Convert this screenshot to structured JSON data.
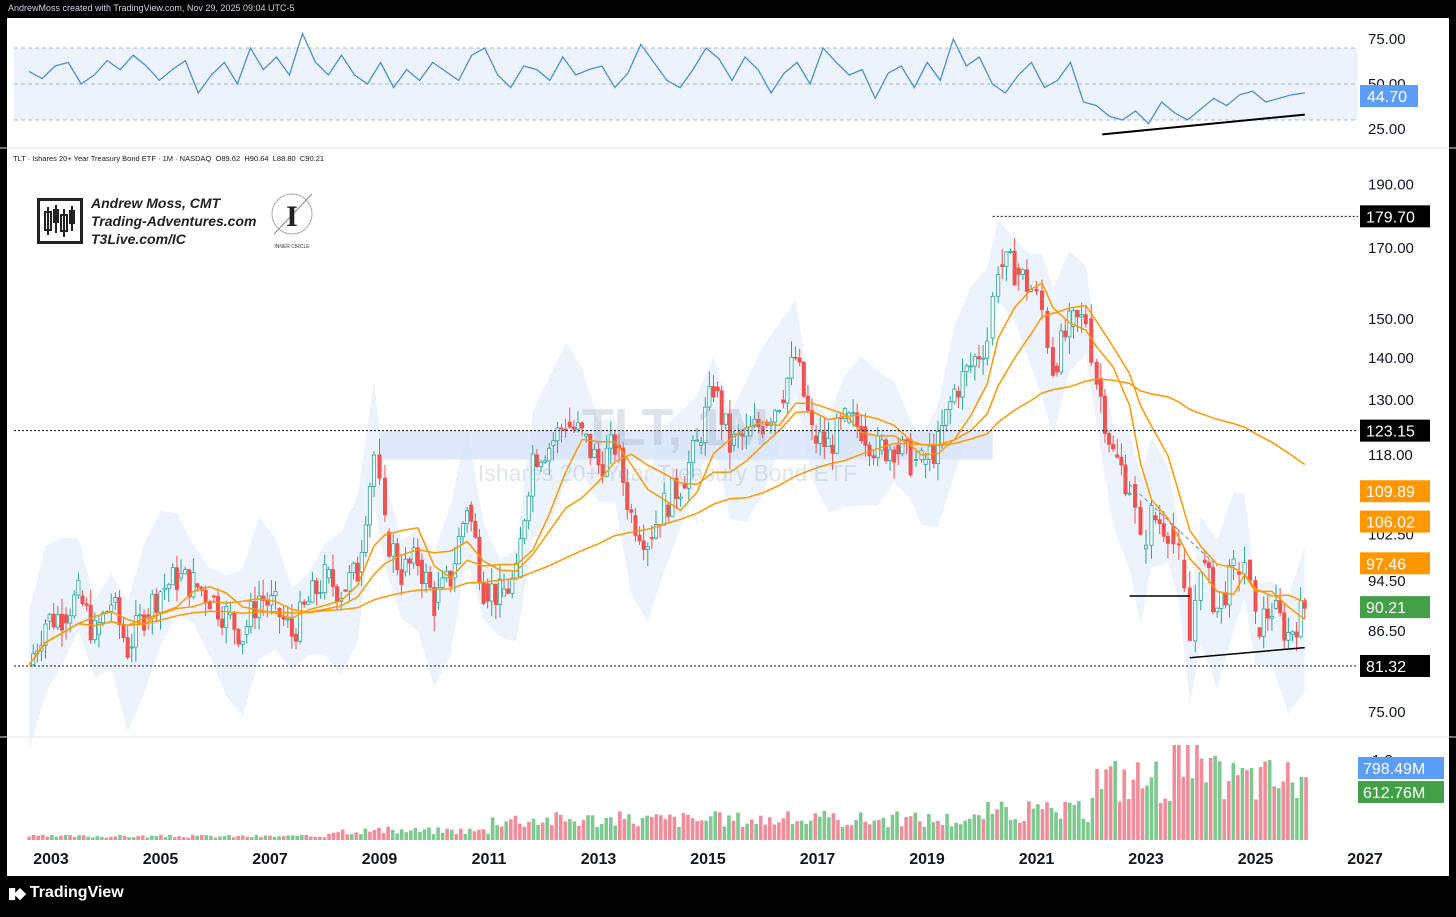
{
  "header": {
    "attribution": "AndrewMoss created with TradingView.com, Nov 29, 2025 09:04 UTC-5"
  },
  "footer": {
    "brand": "TradingView",
    "icon": "tradingview-logo-icon"
  },
  "legend": {
    "symbol_text": "TLT · Ishares 20+ Year Treasury Bond ETF · 1M · NASDAQ",
    "open_label": "O",
    "open": "89.62",
    "high_label": "H",
    "high": "90.64",
    "low_label": "L",
    "low": "88.80",
    "close_label": "C",
    "close": "90.21"
  },
  "signature": {
    "line1": "Andrew Moss, CMT",
    "line2": "Trading-Adventures.com",
    "line3": "T3Live.com/IC",
    "logo_letter": "I",
    "logo_caption": "INNER CIRCLE"
  },
  "watermark": {
    "title": "TLT, 1M",
    "subtitle": "Ishares 20+ Year Treasury Bond ETF"
  },
  "colors": {
    "up": "#26a69a",
    "down": "#ef5350",
    "sma": "#ff9800",
    "rsi": "#4a90d9",
    "volume_up": "#7dc98f",
    "volume_down": "#f28b9a",
    "band_fill": "#eaf1fb",
    "price_tag": "#43a047",
    "black_tag": "#000000",
    "orange_tag": "#ff9800",
    "blue_tag": "#5b9cf6"
  },
  "chart_data": [
    {
      "type": "line",
      "name": "rsi-panel",
      "yticks": [
        "75.00",
        "50.00",
        "25.00"
      ],
      "ylim": [
        20,
        80
      ],
      "levels": [
        70,
        50,
        30
      ],
      "value_tag": "44.70",
      "values": [
        57,
        53,
        60,
        62,
        50,
        55,
        63,
        58,
        66,
        60,
        52,
        58,
        63,
        45,
        55,
        62,
        50,
        70,
        58,
        65,
        55,
        78,
        62,
        55,
        66,
        55,
        50,
        62,
        48,
        58,
        52,
        62,
        57,
        52,
        66,
        70,
        55,
        48,
        60,
        58,
        52,
        65,
        55,
        58,
        60,
        48,
        56,
        72,
        62,
        52,
        48,
        58,
        70,
        64,
        52,
        65,
        58,
        45,
        56,
        62,
        50,
        70,
        62,
        55,
        58,
        42,
        56,
        60,
        48,
        62,
        52,
        75,
        60,
        65,
        50,
        45,
        55,
        62,
        48,
        52,
        62,
        40,
        38,
        32,
        30,
        35,
        28,
        40,
        34,
        30,
        36,
        42,
        38,
        44,
        46,
        40,
        42,
        44,
        45
      ]
    },
    {
      "type": "candlestick",
      "name": "price-panel",
      "title": "TLT · Ishares 20+ Year Treasury Bond ETF · 1M · NASDAQ",
      "xticks": [
        "2003",
        "2005",
        "2007",
        "2009",
        "2011",
        "2013",
        "2015",
        "2017",
        "2019",
        "2021",
        "2023",
        "2025",
        "2027"
      ],
      "yticks": [
        "190.00",
        "170.00",
        "150.00",
        "140.00",
        "130.00",
        "118.00",
        "102.50",
        "94.50",
        "86.50",
        "75.00"
      ],
      "ylim": [
        72,
        195
      ],
      "scale": "log",
      "price_tags": [
        {
          "value": "179.70",
          "style": "black"
        },
        {
          "value": "123.15",
          "style": "black"
        },
        {
          "value": "109.89",
          "style": "orange"
        },
        {
          "value": "106.02",
          "style": "orange"
        },
        {
          "value": "97.46",
          "style": "orange"
        },
        {
          "value": "90.21",
          "style": "green"
        },
        {
          "value": "81.32",
          "style": "black"
        }
      ],
      "levels": [
        179.7,
        123.15,
        81.32
      ],
      "closes": [
        [
          2002.6,
          81.5
        ],
        [
          2002.9,
          88
        ],
        [
          2003.2,
          89
        ],
        [
          2003.5,
          92
        ],
        [
          2003.8,
          86
        ],
        [
          2004.1,
          91
        ],
        [
          2004.4,
          84
        ],
        [
          2004.7,
          89
        ],
        [
          2005.0,
          93
        ],
        [
          2005.3,
          95
        ],
        [
          2005.6,
          94
        ],
        [
          2005.9,
          92
        ],
        [
          2006.2,
          89
        ],
        [
          2006.5,
          86
        ],
        [
          2006.8,
          92
        ],
        [
          2007.1,
          90
        ],
        [
          2007.4,
          86
        ],
        [
          2007.7,
          91
        ],
        [
          2008.0,
          95
        ],
        [
          2008.3,
          93
        ],
        [
          2008.6,
          96
        ],
        [
          2008.9,
          118
        ],
        [
          2009.1,
          103
        ],
        [
          2009.4,
          96
        ],
        [
          2009.7,
          98
        ],
        [
          2010.0,
          91
        ],
        [
          2010.3,
          95
        ],
        [
          2010.6,
          108
        ],
        [
          2010.9,
          94
        ],
        [
          2011.2,
          92
        ],
        [
          2011.5,
          95
        ],
        [
          2011.8,
          118
        ],
        [
          2012.1,
          120
        ],
        [
          2012.4,
          125
        ],
        [
          2012.7,
          122
        ],
        [
          2013.0,
          116
        ],
        [
          2013.3,
          120
        ],
        [
          2013.6,
          106
        ],
        [
          2013.9,
          102
        ],
        [
          2014.2,
          108
        ],
        [
          2014.5,
          112
        ],
        [
          2014.8,
          120
        ],
        [
          2015.1,
          133
        ],
        [
          2015.4,
          120
        ],
        [
          2015.7,
          122
        ],
        [
          2016.0,
          125
        ],
        [
          2016.3,
          130
        ],
        [
          2016.6,
          140
        ],
        [
          2016.9,
          122
        ],
        [
          2017.2,
          120
        ],
        [
          2017.5,
          125
        ],
        [
          2017.8,
          124
        ],
        [
          2018.1,
          119
        ],
        [
          2018.4,
          120
        ],
        [
          2018.7,
          117
        ],
        [
          2018.9,
          116
        ],
        [
          2019.2,
          120
        ],
        [
          2019.5,
          132
        ],
        [
          2019.8,
          138
        ],
        [
          2020.1,
          145
        ],
        [
          2020.3,
          165
        ],
        [
          2020.6,
          164
        ],
        [
          2020.9,
          158
        ],
        [
          2021.1,
          152
        ],
        [
          2021.3,
          138
        ],
        [
          2021.6,
          148
        ],
        [
          2021.9,
          150
        ],
        [
          2022.1,
          135
        ],
        [
          2022.4,
          118
        ],
        [
          2022.7,
          112
        ],
        [
          2022.9,
          100
        ],
        [
          2023.1,
          106
        ],
        [
          2023.4,
          104
        ],
        [
          2023.6,
          98
        ],
        [
          2023.8,
          85
        ],
        [
          2024.0,
          98
        ],
        [
          2024.3,
          90
        ],
        [
          2024.6,
          96
        ],
        [
          2024.8,
          98
        ],
        [
          2025.0,
          87
        ],
        [
          2025.3,
          90
        ],
        [
          2025.6,
          86
        ],
        [
          2025.9,
          90.21
        ]
      ],
      "sma_fast_last": "97.46",
      "sma_slow_last": "106.02",
      "sma_200_last": "109.89"
    },
    {
      "type": "bar",
      "name": "volume-panel",
      "value_tags": [
        {
          "value": "798.49M",
          "style": "blue"
        },
        {
          "value": "612.76M",
          "style": "green"
        }
      ],
      "partial_tick": "1.2",
      "volume_start": 2002.6,
      "volume_step": 0.083
    }
  ]
}
